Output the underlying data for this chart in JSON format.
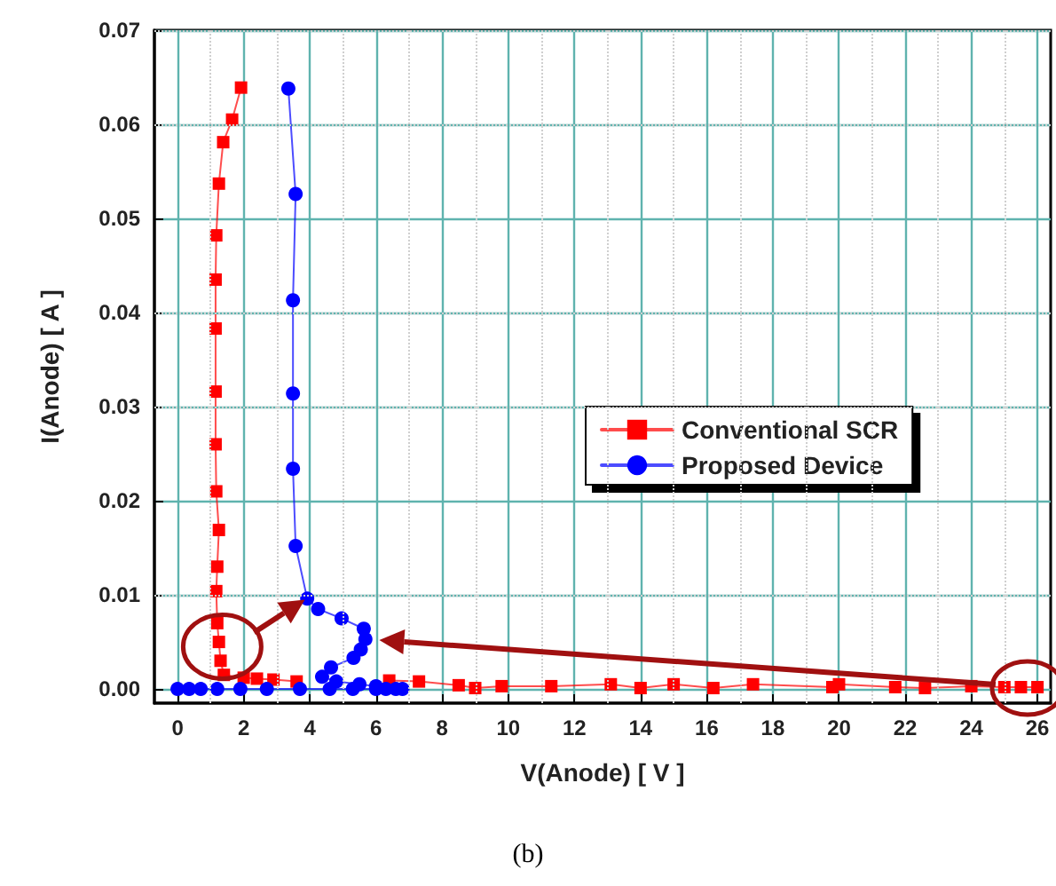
{
  "chart_data": {
    "type": "line",
    "xlabel": "V(Anode) [ V ]",
    "ylabel": "I(Anode) [ A ]",
    "xlim": [
      -0.7,
      26.4
    ],
    "xticks": [
      0,
      2,
      4,
      6,
      8,
      10,
      12,
      14,
      16,
      18,
      20,
      22,
      24,
      26
    ],
    "ylim": [
      -0.0015,
      0.07
    ],
    "yticks": [
      {
        "value": 0,
        "label": "0.00"
      },
      {
        "value": 0.01,
        "label": "0.01"
      },
      {
        "value": 0.02,
        "label": "0.02"
      },
      {
        "value": 0.03,
        "label": "0.03"
      },
      {
        "value": 0.04,
        "label": "0.04"
      },
      {
        "value": 0.05,
        "label": "0.05"
      },
      {
        "value": 0.06,
        "label": "0.06"
      },
      {
        "value": 0.07,
        "label": "0.07"
      }
    ],
    "grid": true,
    "legend": "right",
    "line_style": "solid",
    "annotations": [
      "(b)"
    ],
    "series": [
      {
        "name": "Conventional SCR",
        "color": "#ff0000",
        "marker": "square",
        "x": [
          26,
          25.5,
          25,
          24,
          22.6,
          21.7,
          20,
          19.8,
          17.4,
          16.2,
          15,
          14,
          13.1,
          11.3,
          9.8,
          9,
          8.5,
          7.3,
          6.4,
          5.5,
          3.6,
          2.9,
          2.4,
          2,
          1.4,
          1.3,
          1.25,
          1.2,
          1.17,
          1.2,
          1.25,
          1.17,
          1.15,
          1.15,
          1.15,
          1.15,
          1.17,
          1.25,
          1.38,
          1.65,
          1.92
        ],
        "values": [
          0.0002,
          0.0002,
          0.0002,
          0.0003,
          0.0001,
          0.0002,
          0.0005,
          0.0002,
          0.0005,
          0.0001,
          0.0005,
          0.0001,
          0.0005,
          0.0003,
          0.0003,
          0.0001,
          0.0004,
          0.0008,
          0.0009,
          null,
          0.0008,
          0.001,
          0.0011,
          0.0012,
          0.0015,
          0.003,
          0.005,
          0.007,
          0.0104,
          0.013,
          0.0169,
          0.021,
          0.026,
          0.0316,
          0.0383,
          0.0435,
          0.0482,
          0.0537,
          0.0581,
          0.0605,
          0.0639
        ]
      },
      {
        "name": "Proposed Device",
        "color": "#0000ff",
        "marker": "circle",
        "x": [
          0,
          0.35,
          0.7,
          1.2,
          1.9,
          2.7,
          3.7,
          4.6,
          5.3,
          6,
          6.3,
          6.6,
          6.8,
          6,
          5.5,
          4.8,
          4.37,
          4.64,
          5.32,
          5.54,
          5.68,
          5.63,
          4.96,
          4.25,
          3.92,
          3.57,
          3.49,
          3.49,
          3.49,
          3.57,
          3.35
        ],
        "values": [
          0,
          0,
          0,
          0,
          0,
          0,
          0,
          0,
          0,
          0,
          0,
          0,
          0,
          0.0003,
          0.0005,
          0.0008,
          0.0013,
          0.0023,
          0.0033,
          0.0042,
          0.0053,
          0.0064,
          0.0075,
          0.0085,
          0.0096,
          0.0152,
          0.0234,
          0.0314,
          0.0413,
          0.0526,
          0.0638
        ]
      }
    ]
  }
}
